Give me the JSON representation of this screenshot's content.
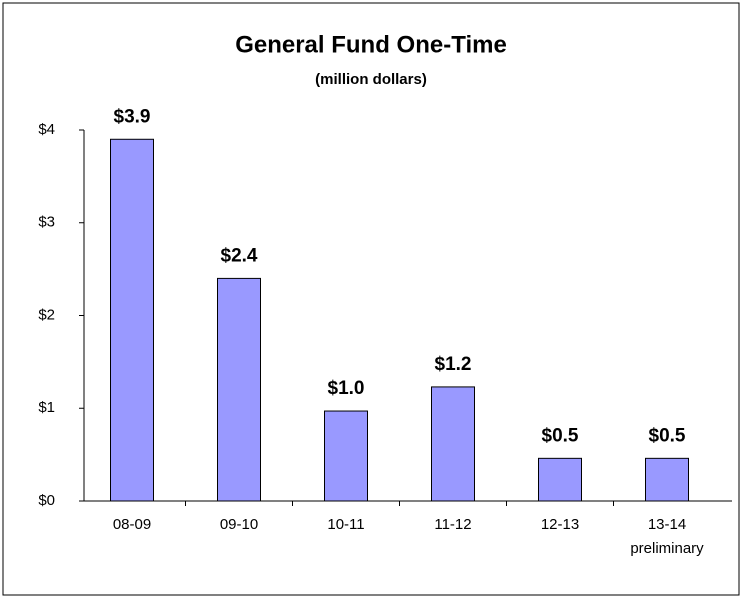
{
  "chart_data": {
    "type": "bar",
    "title": "General Fund One-Time",
    "subtitle": "(million dollars)",
    "categories": [
      "08-09",
      "09-10",
      "10-11",
      "11-12",
      "12-13",
      "13-14\npreliminary"
    ],
    "values": [
      3.9,
      2.4,
      0.97,
      1.23,
      0.46,
      0.46
    ],
    "value_labels": [
      "$3.9",
      "$2.4",
      "$1.0",
      "$1.2",
      "$0.5",
      "$0.5"
    ],
    "color": "#9999ff",
    "ylim": [
      0,
      4
    ],
    "yticks": [
      {
        "value": 0,
        "label": "$0"
      },
      {
        "value": 1,
        "label": "$1"
      },
      {
        "value": 2,
        "label": "$2"
      },
      {
        "value": 3,
        "label": "$3"
      },
      {
        "value": 4,
        "label": "$4"
      }
    ],
    "grid": false
  }
}
